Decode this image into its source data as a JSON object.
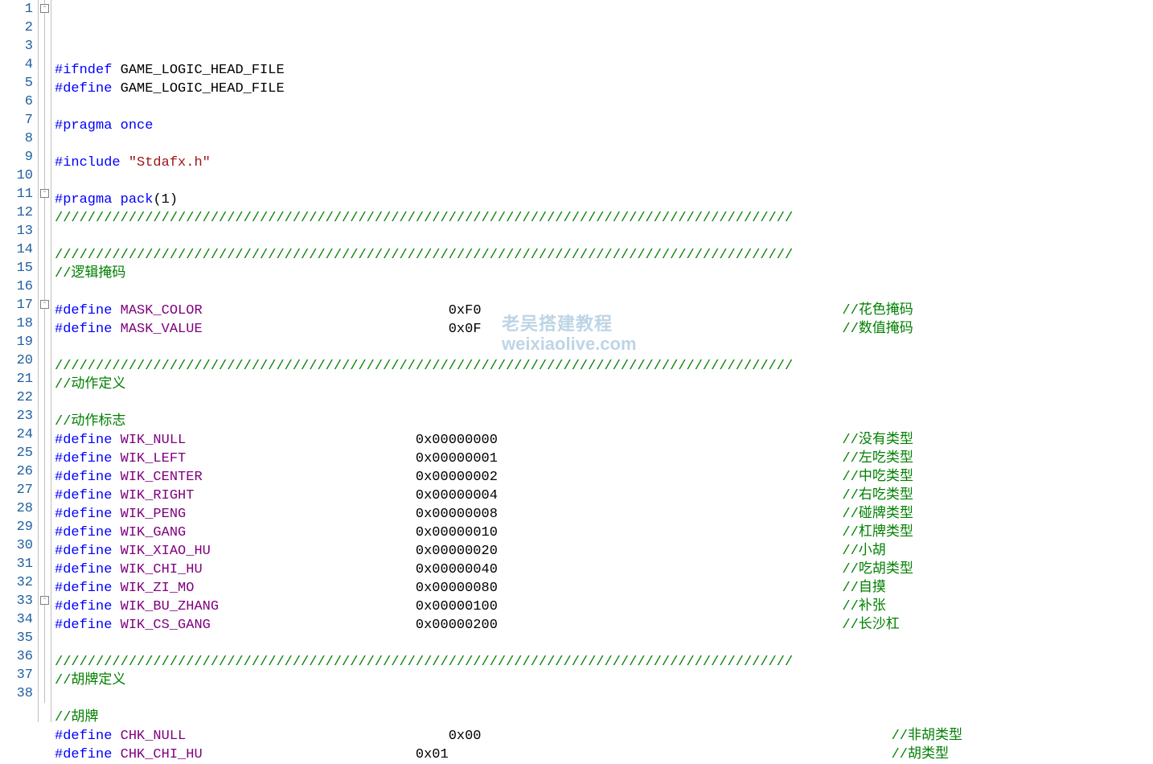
{
  "editor": {
    "lineHeight": 23,
    "gutterColor": "#2060a0",
    "foldLines": [
      1,
      11,
      17,
      33
    ],
    "totalLines": 38,
    "watermark": {
      "line1": "老吴搭建教程",
      "line2": "weixiaolive.com"
    },
    "tokens": {
      "preproc": "#8b4500",
      "keyword": "#0000ff",
      "macro": "#800080",
      "string": "#a31515",
      "comment": "#008000"
    },
    "lines": [
      {
        "n": 1,
        "segs": [
          [
            "keyword",
            "#ifndef "
          ],
          [
            "ident",
            "GAME_LOGIC_HEAD_FILE"
          ]
        ]
      },
      {
        "n": 2,
        "segs": [
          [
            "keyword",
            "#define "
          ],
          [
            "ident",
            "GAME_LOGIC_HEAD_FILE"
          ]
        ]
      },
      {
        "n": 3,
        "segs": []
      },
      {
        "n": 4,
        "segs": [
          [
            "keyword",
            "#pragma "
          ],
          [
            "keyword",
            "once"
          ]
        ]
      },
      {
        "n": 5,
        "segs": []
      },
      {
        "n": 6,
        "segs": [
          [
            "keyword",
            "#include "
          ],
          [
            "string",
            "\"Stdafx.h\""
          ]
        ]
      },
      {
        "n": 7,
        "segs": []
      },
      {
        "n": 8,
        "segs": [
          [
            "keyword",
            "#pragma "
          ],
          [
            "keyword",
            "pack"
          ],
          [
            "punct",
            "(1)"
          ]
        ]
      },
      {
        "n": 9,
        "segs": [
          [
            "comment",
            "//////////////////////////////////////////////////////////////////////////////////////////"
          ]
        ]
      },
      {
        "n": 10,
        "segs": []
      },
      {
        "n": 11,
        "segs": [
          [
            "comment",
            "//////////////////////////////////////////////////////////////////////////////////////////"
          ]
        ]
      },
      {
        "n": 12,
        "segs": [
          [
            "comment",
            "//逻辑掩码"
          ]
        ]
      },
      {
        "n": 13,
        "segs": []
      },
      {
        "n": 14,
        "segs": [
          [
            "keyword",
            "#define "
          ],
          [
            "macro",
            "MASK_COLOR"
          ],
          [
            "pad",
            "                              "
          ],
          [
            "number",
            "0xF0"
          ],
          [
            "pad",
            "                                            "
          ],
          [
            "comment",
            "//花色掩码"
          ]
        ]
      },
      {
        "n": 15,
        "segs": [
          [
            "keyword",
            "#define "
          ],
          [
            "macro",
            "MASK_VALUE"
          ],
          [
            "pad",
            "                              "
          ],
          [
            "number",
            "0x0F"
          ],
          [
            "pad",
            "                                            "
          ],
          [
            "comment",
            "//数值掩码"
          ]
        ]
      },
      {
        "n": 16,
        "segs": []
      },
      {
        "n": 17,
        "segs": [
          [
            "comment",
            "//////////////////////////////////////////////////////////////////////////////////////////"
          ]
        ]
      },
      {
        "n": 18,
        "segs": [
          [
            "comment",
            "//动作定义"
          ]
        ]
      },
      {
        "n": 19,
        "segs": []
      },
      {
        "n": 20,
        "segs": [
          [
            "comment",
            "//动作标志"
          ]
        ]
      },
      {
        "n": 21,
        "segs": [
          [
            "keyword",
            "#define "
          ],
          [
            "macro",
            "WIK_NULL"
          ],
          [
            "pad",
            "                            "
          ],
          [
            "number",
            "0x00000000"
          ],
          [
            "pad",
            "                                          "
          ],
          [
            "comment",
            "//没有类型"
          ]
        ]
      },
      {
        "n": 22,
        "segs": [
          [
            "keyword",
            "#define "
          ],
          [
            "macro",
            "WIK_LEFT"
          ],
          [
            "pad",
            "                            "
          ],
          [
            "number",
            "0x00000001"
          ],
          [
            "pad",
            "                                          "
          ],
          [
            "comment",
            "//左吃类型"
          ]
        ]
      },
      {
        "n": 23,
        "segs": [
          [
            "keyword",
            "#define "
          ],
          [
            "macro",
            "WIK_CENTER"
          ],
          [
            "pad",
            "                          "
          ],
          [
            "number",
            "0x00000002"
          ],
          [
            "pad",
            "                                          "
          ],
          [
            "comment",
            "//中吃类型"
          ]
        ]
      },
      {
        "n": 24,
        "segs": [
          [
            "keyword",
            "#define "
          ],
          [
            "macro",
            "WIK_RIGHT"
          ],
          [
            "pad",
            "                           "
          ],
          [
            "number",
            "0x00000004"
          ],
          [
            "pad",
            "                                          "
          ],
          [
            "comment",
            "//右吃类型"
          ]
        ]
      },
      {
        "n": 25,
        "segs": [
          [
            "keyword",
            "#define "
          ],
          [
            "macro",
            "WIK_PENG"
          ],
          [
            "pad",
            "                            "
          ],
          [
            "number",
            "0x00000008"
          ],
          [
            "pad",
            "                                          "
          ],
          [
            "comment",
            "//碰牌类型"
          ]
        ]
      },
      {
        "n": 26,
        "segs": [
          [
            "keyword",
            "#define "
          ],
          [
            "macro",
            "WIK_GANG"
          ],
          [
            "pad",
            "                            "
          ],
          [
            "number",
            "0x00000010"
          ],
          [
            "pad",
            "                                          "
          ],
          [
            "comment",
            "//杠牌类型"
          ]
        ]
      },
      {
        "n": 27,
        "segs": [
          [
            "keyword",
            "#define "
          ],
          [
            "macro",
            "WIK_XIAO_HU"
          ],
          [
            "pad",
            "                         "
          ],
          [
            "number",
            "0x00000020"
          ],
          [
            "pad",
            "                                          "
          ],
          [
            "comment",
            "//小胡"
          ]
        ]
      },
      {
        "n": 28,
        "segs": [
          [
            "keyword",
            "#define "
          ],
          [
            "macro",
            "WIK_CHI_HU"
          ],
          [
            "pad",
            "                          "
          ],
          [
            "number",
            "0x00000040"
          ],
          [
            "pad",
            "                                          "
          ],
          [
            "comment",
            "//吃胡类型"
          ]
        ]
      },
      {
        "n": 29,
        "segs": [
          [
            "keyword",
            "#define "
          ],
          [
            "macro",
            "WIK_ZI_MO"
          ],
          [
            "pad",
            "                           "
          ],
          [
            "number",
            "0x00000080"
          ],
          [
            "pad",
            "                                          "
          ],
          [
            "comment",
            "//自摸"
          ]
        ]
      },
      {
        "n": 30,
        "segs": [
          [
            "keyword",
            "#define "
          ],
          [
            "macro",
            "WIK_BU_ZHANG"
          ],
          [
            "pad",
            "                        "
          ],
          [
            "number",
            "0x00000100"
          ],
          [
            "pad",
            "                                          "
          ],
          [
            "comment",
            "//补张"
          ]
        ]
      },
      {
        "n": 31,
        "segs": [
          [
            "keyword",
            "#define "
          ],
          [
            "macro",
            "WIK_CS_GANG"
          ],
          [
            "pad",
            "                         "
          ],
          [
            "number",
            "0x00000200"
          ],
          [
            "pad",
            "                                          "
          ],
          [
            "comment",
            "//长沙杠"
          ]
        ]
      },
      {
        "n": 32,
        "segs": []
      },
      {
        "n": 33,
        "segs": [
          [
            "comment",
            "//////////////////////////////////////////////////////////////////////////////////////////"
          ]
        ]
      },
      {
        "n": 34,
        "segs": [
          [
            "comment",
            "//胡牌定义"
          ]
        ]
      },
      {
        "n": 35,
        "segs": []
      },
      {
        "n": 36,
        "segs": [
          [
            "comment",
            "//胡牌"
          ]
        ]
      },
      {
        "n": 37,
        "segs": [
          [
            "keyword",
            "#define "
          ],
          [
            "macro",
            "CHK_NULL"
          ],
          [
            "pad",
            "                                "
          ],
          [
            "number",
            "0x00"
          ],
          [
            "pad",
            "                                                  "
          ],
          [
            "comment",
            "//非胡类型"
          ]
        ]
      },
      {
        "n": 38,
        "segs": [
          [
            "keyword",
            "#define "
          ],
          [
            "macro",
            "CHK_CHI_HU"
          ],
          [
            "pad",
            "                          "
          ],
          [
            "number",
            "0x01"
          ],
          [
            "pad",
            "                                                      "
          ],
          [
            "comment",
            "//胡类型"
          ]
        ]
      }
    ]
  }
}
